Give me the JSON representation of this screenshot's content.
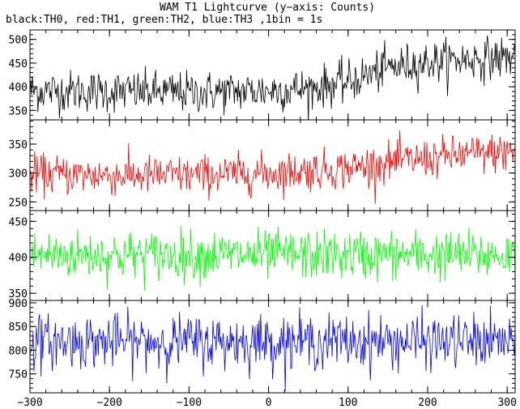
{
  "title": "WAM T1 Lightcurve (y−axis: Counts)",
  "subtitle": "black:TH0, red:TH1, green:TH2, blue:TH3 ,1bin = 1s",
  "chart_data": {
    "type": "line",
    "title": "WAM T1 Lightcurve (y−axis: Counts)",
    "subtitle": "black:TH0, red:TH1, green:TH2, blue:TH3 ,1bin = 1s",
    "xlabel": "",
    "ylabel": "",
    "xlim": [
      -300,
      310
    ],
    "x_ticks": [
      -300,
      -200,
      -100,
      0,
      100,
      200,
      300
    ],
    "x_tick_labels": [
      "−300",
      "−200",
      "−100",
      "0",
      "100",
      "200",
      "300"
    ],
    "grid": false,
    "panels": [
      {
        "name": "TH0",
        "color": "#000000",
        "ylim": [
          330,
          520
        ],
        "y_ticks": [
          350,
          400,
          450,
          500
        ],
        "y_tick_labels": [
          "350",
          "400",
          "450",
          "500"
        ],
        "trend_x": [
          -300,
          -200,
          -100,
          0,
          50,
          100,
          150,
          200,
          250,
          300,
          310
        ],
        "trend_y": [
          392,
          390,
          388,
          392,
          396,
          410,
          440,
          452,
          458,
          462,
          462
        ],
        "noise_sd": 22
      },
      {
        "name": "TH1",
        "color": "#ff0000",
        "ylim": [
          235,
          392
        ],
        "y_ticks": [
          250,
          300,
          350
        ],
        "y_tick_labels": [
          "250",
          "300",
          "350"
        ],
        "trend_x": [
          -300,
          -200,
          -100,
          0,
          100,
          150,
          200,
          250,
          300,
          310
        ],
        "trend_y": [
          298,
          296,
          296,
          300,
          308,
          318,
          325,
          332,
          336,
          336
        ],
        "noise_sd": 17
      },
      {
        "name": "TH2",
        "color": "#00ff00",
        "ylim": [
          340,
          465
        ],
        "y_ticks": [
          350,
          400,
          450
        ],
        "y_tick_labels": [
          "350",
          "400",
          "450"
        ],
        "trend_x": [
          -300,
          310
        ],
        "trend_y": [
          403,
          403
        ],
        "noise_sd": 17
      },
      {
        "name": "TH3",
        "color": "#0000ff",
        "ylim": [
          710,
          905
        ],
        "y_ticks": [
          750,
          800,
          850,
          900
        ],
        "y_tick_labels": [
          "750",
          "800",
          "850",
          "900"
        ],
        "trend_x": [
          -300,
          310
        ],
        "trend_y": [
          818,
          818
        ],
        "noise_sd": 28
      }
    ]
  }
}
